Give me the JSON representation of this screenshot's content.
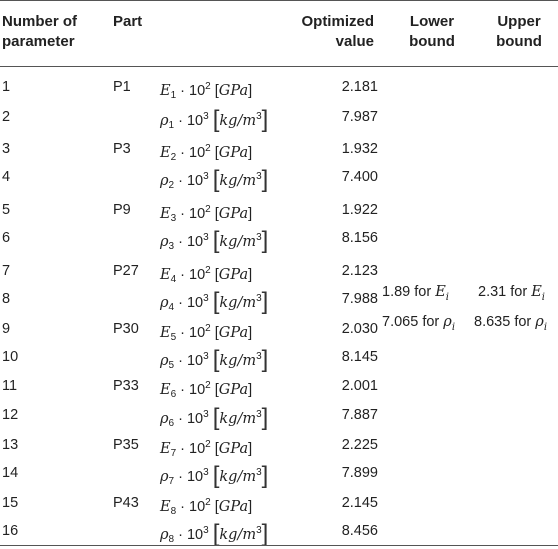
{
  "header": {
    "col_number": [
      "Number of",
      "parameter"
    ],
    "col_part": "Part",
    "col_value": [
      "Optimized",
      "value"
    ],
    "col_lower": [
      "Lower",
      "bound"
    ],
    "col_upper": [
      "Upper",
      "bound"
    ]
  },
  "rows": [
    {
      "num": "1",
      "part": "P1",
      "sym": "E",
      "sub": "1",
      "exp": "2",
      "unit": "GPa",
      "value": "2.181"
    },
    {
      "num": "2",
      "part": "",
      "sym": "ρ",
      "sub": "1",
      "exp": "3",
      "unit": "kg/m",
      "unit_exp": "3",
      "value": "7.987"
    },
    {
      "num": "3",
      "part": "P3",
      "sym": "E",
      "sub": "2",
      "exp": "2",
      "unit": "GPa",
      "value": "1.932"
    },
    {
      "num": "4",
      "part": "",
      "sym": "ρ",
      "sub": "2",
      "exp": "3",
      "unit": "kg/m",
      "unit_exp": "3",
      "value": "7.400"
    },
    {
      "num": "5",
      "part": "P9",
      "sym": "E",
      "sub": "3",
      "exp": "2",
      "unit": "GPa",
      "value": "1.922"
    },
    {
      "num": "6",
      "part": "",
      "sym": "ρ",
      "sub": "3",
      "exp": "3",
      "unit": "kg/m",
      "unit_exp": "3",
      "value": "8.156"
    },
    {
      "num": "7",
      "part": "P27",
      "sym": "E",
      "sub": "4",
      "exp": "2",
      "unit": "GPa",
      "value": "2.123"
    },
    {
      "num": "8",
      "part": "",
      "sym": "ρ",
      "sub": "4",
      "exp": "3",
      "unit": "kg/m",
      "unit_exp": "3",
      "value": "7.988"
    },
    {
      "num": "9",
      "part": "P30",
      "sym": "E",
      "sub": "5",
      "exp": "2",
      "unit": "GPa",
      "value": "2.030"
    },
    {
      "num": "10",
      "part": "",
      "sym": "ρ",
      "sub": "5",
      "exp": "3",
      "unit": "kg/m",
      "unit_exp": "3",
      "value": "8.145"
    },
    {
      "num": "11",
      "part": "P33",
      "sym": "E",
      "sub": "6",
      "exp": "2",
      "unit": "GPa",
      "value": "2.001"
    },
    {
      "num": "12",
      "part": "",
      "sym": "ρ",
      "sub": "6",
      "exp": "3",
      "unit": "kg/m",
      "unit_exp": "3",
      "value": "7.887"
    },
    {
      "num": "13",
      "part": "P35",
      "sym": "E",
      "sub": "7",
      "exp": "2",
      "unit": "GPa",
      "value": "2.225"
    },
    {
      "num": "14",
      "part": "",
      "sym": "ρ",
      "sub": "7",
      "exp": "3",
      "unit": "kg/m",
      "unit_exp": "3",
      "value": "7.899"
    },
    {
      "num": "15",
      "part": "P43",
      "sym": "E",
      "sub": "8",
      "exp": "2",
      "unit": "GPa",
      "value": "2.145"
    },
    {
      "num": "16",
      "part": "",
      "sym": "ρ",
      "sub": "8",
      "exp": "3",
      "unit": "kg/m",
      "unit_exp": "3",
      "value": "8.456"
    }
  ],
  "bounds": {
    "lower_e": "1.89 for",
    "lower_rho": "7.065 for",
    "upper_e": "2.31 for",
    "upper_rho": "8.635 for",
    "sym_e": "E",
    "sym_rho": "ρ",
    "sub_i": "i"
  }
}
